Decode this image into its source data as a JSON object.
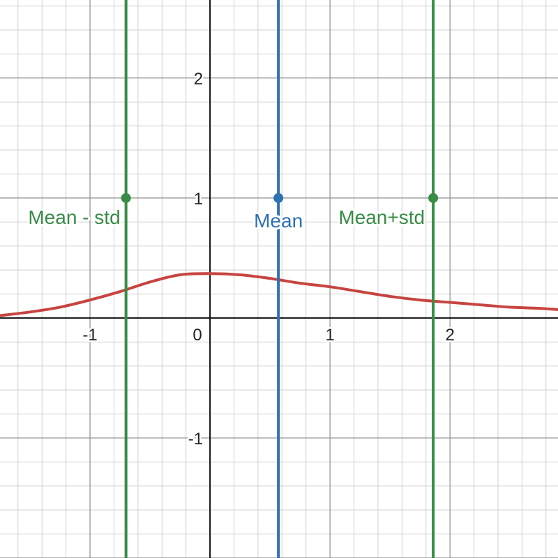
{
  "chart_data": {
    "type": "line",
    "xlim": [
      -1.75,
      2.9
    ],
    "ylim": [
      -2.0,
      2.65
    ],
    "grid": true,
    "minor_step": 0.2,
    "major_step": 1,
    "x_ticks": [
      {
        "value": -1,
        "label": "-1"
      },
      {
        "value": 0,
        "label": "0"
      },
      {
        "value": 1,
        "label": "1"
      },
      {
        "value": 2,
        "label": "2"
      }
    ],
    "y_ticks": [
      {
        "value": 2,
        "label": "2"
      },
      {
        "value": 1,
        "label": "1"
      },
      {
        "value": -1,
        "label": "-1"
      }
    ],
    "curve": {
      "color": "#c74440",
      "points": [
        [
          -1.75,
          0.02
        ],
        [
          -1.5,
          0.05
        ],
        [
          -1.25,
          0.09
        ],
        [
          -1.0,
          0.15
        ],
        [
          -0.75,
          0.22
        ],
        [
          -0.5,
          0.3
        ],
        [
          -0.25,
          0.36
        ],
        [
          0.0,
          0.37
        ],
        [
          0.25,
          0.36
        ],
        [
          0.5,
          0.33
        ],
        [
          0.75,
          0.29
        ],
        [
          1.0,
          0.26
        ],
        [
          1.25,
          0.22
        ],
        [
          1.5,
          0.18
        ],
        [
          1.75,
          0.15
        ],
        [
          2.0,
          0.13
        ],
        [
          2.25,
          0.11
        ],
        [
          2.5,
          0.09
        ],
        [
          2.75,
          0.08
        ],
        [
          2.9,
          0.07
        ]
      ]
    },
    "vertical_lines": [
      {
        "x": -0.7,
        "label": "Mean - std",
        "color": "#388c46",
        "point_y": 1
      },
      {
        "x": 0.57,
        "label": "Mean",
        "color": "#2d70b3",
        "point_y": 1
      },
      {
        "x": 1.86,
        "label": "Mean+std",
        "color": "#388c46",
        "point_y": 1
      }
    ]
  }
}
